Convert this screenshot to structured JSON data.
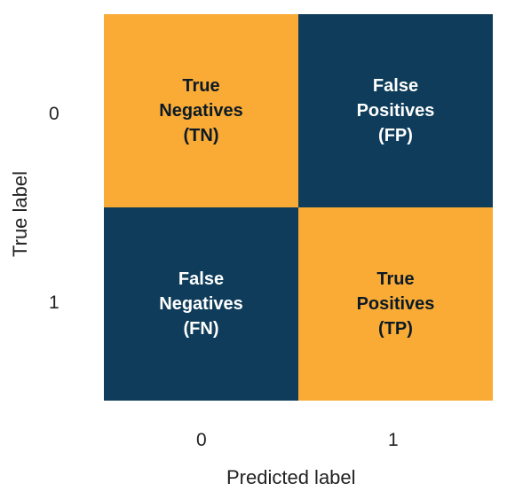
{
  "diagram": {
    "axes": {
      "x_label": "Predicted label",
      "y_label": "True label",
      "x_ticks": [
        "0",
        "1"
      ],
      "y_ticks": [
        "0",
        "1"
      ]
    },
    "cells": [
      {
        "lines": [
          "True",
          "Negatives",
          "(TN)"
        ],
        "color": "#F9AB35",
        "text_color": "#0B1A26"
      },
      {
        "lines": [
          "False",
          "Positives",
          "(FP)"
        ],
        "color": "#0E3C5A",
        "text_color": "#FFFFFF"
      },
      {
        "lines": [
          "False",
          "Negatives",
          "(FN)"
        ],
        "color": "#0E3C5A",
        "text_color": "#FFFFFF"
      },
      {
        "lines": [
          "True",
          "Positives",
          "(TP)"
        ],
        "color": "#F9AB35",
        "text_color": "#0B1A26"
      }
    ],
    "colors": {
      "orange": "#F9AB35",
      "navy": "#0E3C5A"
    }
  }
}
